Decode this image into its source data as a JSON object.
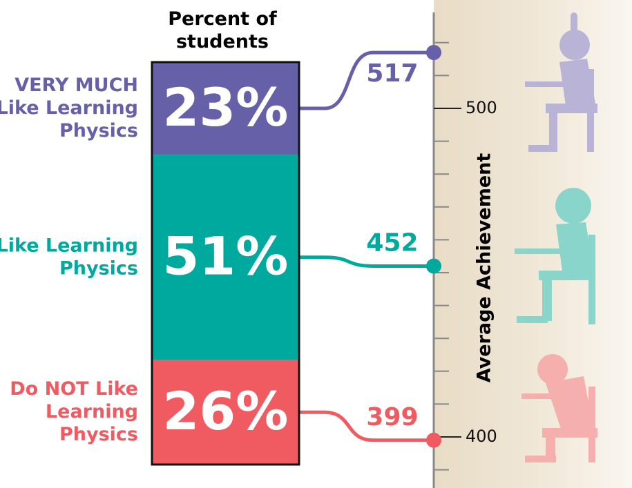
{
  "chart_data": {
    "type": "stacked-bar-achievement",
    "bar_title": [
      "Percent of",
      "students"
    ],
    "categories": [
      [
        "VERY MUCH",
        "Like Learning",
        "Physics"
      ],
      [
        "Like Learning",
        "Physics"
      ],
      [
        "Do NOT Like",
        "Learning",
        "Physics"
      ]
    ],
    "colors": [
      "#6560a8",
      "#00a99d",
      "#f05a61"
    ],
    "percent": [
      23,
      51,
      26
    ],
    "percent_labels": [
      "23%",
      "51%",
      "26%"
    ],
    "achievement": [
      517,
      452,
      399
    ],
    "ylabel": "Average Achievement",
    "ylim": [
      381,
      525
    ],
    "yticks": [
      400,
      500
    ],
    "yminorticks": [
      390,
      410,
      420,
      430,
      440,
      450,
      460,
      470,
      480,
      490,
      510,
      520
    ]
  }
}
